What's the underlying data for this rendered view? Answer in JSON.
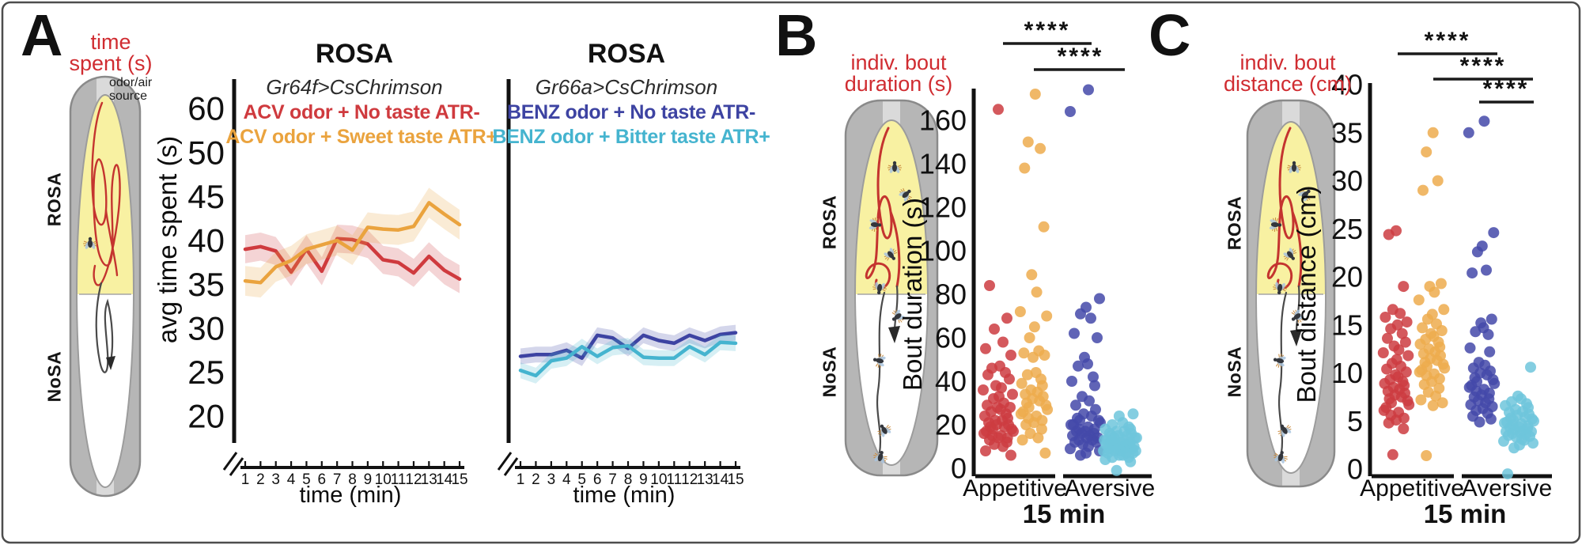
{
  "colors": {
    "caption_red": "#d02c31",
    "black": "#1a1a1a",
    "arena_gray": "#b6b6b6",
    "arena_border": "#8a8a8a",
    "arena_strip": "#dadada",
    "arena_yellow": "#f8f1a2",
    "path_red": "#c4342f",
    "path_dark": "#4a4a4a"
  },
  "panels": {
    "a": {
      "letter": "A",
      "caption_line1": "time",
      "caption_line2": "spent (s)",
      "odor_line1": "odor/air",
      "odor_line2": "source",
      "rosa": "ROSA",
      "nosa": "NoSA"
    },
    "b": {
      "letter": "B",
      "caption_line1": "indiv. bout",
      "caption_line2": "duration (s)",
      "rosa": "ROSA",
      "nosa": "NoSA"
    },
    "c": {
      "letter": "C",
      "caption_line1": "indiv. bout",
      "caption_line2": "distance (cm)",
      "rosa": "ROSA",
      "nosa": "NoSA"
    }
  },
  "chart_data": [
    {
      "type": "line",
      "title": "ROSA",
      "subtitle": "Gr64f>CsChrimson",
      "xlabel": "time (min)",
      "ylabel": "avg time spent (s)",
      "x": [
        "1",
        "2",
        "3",
        "4",
        "5",
        "6",
        "7",
        "8",
        "9",
        "10",
        "11",
        "12",
        "13",
        "14",
        "15"
      ],
      "yticks": [
        20,
        25,
        30,
        35,
        40,
        45,
        50,
        60
      ],
      "ylim": [
        20,
        60
      ],
      "series": [
        {
          "name": "ACV odor + No taste ATR-",
          "color": "#cf3a3e",
          "band": 1.6,
          "values": [
            39.0,
            39.3,
            38.8,
            36.4,
            39.0,
            36.5,
            40.2,
            40.1,
            39.6,
            37.8,
            37.5,
            36.3,
            38.2,
            36.6,
            35.6
          ]
        },
        {
          "name": "ACV odor + Sweet taste ATR+",
          "color": "#eaa33e",
          "band": 1.7,
          "values": [
            35.4,
            35.2,
            37.0,
            37.7,
            39.0,
            39.5,
            40.0,
            38.9,
            41.5,
            41.3,
            41.2,
            41.6,
            44.3,
            43.0,
            41.8
          ]
        }
      ]
    },
    {
      "type": "line",
      "title": "ROSA",
      "subtitle": "Gr66a>CsChrimson",
      "xlabel": "time (min)",
      "ylabel": "avg time spent (s)",
      "x": [
        "1",
        "2",
        "3",
        "4",
        "5",
        "6",
        "7",
        "8",
        "9",
        "10",
        "11",
        "12",
        "13",
        "14",
        "15"
      ],
      "yticks": [],
      "ylim": [
        20,
        60
      ],
      "series": [
        {
          "name": "BENZ odor + No taste ATR-",
          "color": "#3d43a2",
          "band": 0.9,
          "values": [
            26.8,
            27.0,
            27.0,
            27.5,
            26.6,
            29.2,
            28.9,
            27.7,
            29.2,
            28.6,
            28.3,
            29.2,
            28.6,
            29.3,
            29.5
          ]
        },
        {
          "name": "BENZ odor + Bitter taste ATR+",
          "color": "#45b4cf",
          "band": 0.9,
          "values": [
            25.2,
            24.6,
            26.3,
            26.6,
            27.9,
            26.8,
            27.8,
            28.0,
            26.7,
            26.6,
            26.6,
            27.9,
            27.0,
            28.4,
            28.3
          ]
        }
      ]
    },
    {
      "type": "jitter-scatter",
      "ylabel": "Bout duration (s)",
      "xlabel": "15 min",
      "yticks": [
        0,
        20,
        40,
        60,
        80,
        100,
        120,
        140,
        160
      ],
      "ylim": [
        0,
        175
      ],
      "sig": [
        {
          "label": "****"
        },
        {
          "label": "****"
        }
      ],
      "groups": [
        {
          "label": "Appetitive",
          "series": [
            {
              "color": "#cc3c41",
              "values": [
                165,
                84,
                69,
                64,
                58,
                55,
                52,
                47,
                46,
                44,
                43,
                41,
                38,
                37,
                36,
                34,
                33,
                32,
                30,
                29,
                28,
                28,
                27,
                26,
                25,
                24,
                23,
                22,
                22,
                21,
                20,
                20,
                19,
                19,
                18,
                18,
                17,
                17,
                16,
                15,
                15,
                14,
                14,
                13,
                12,
                11,
                10,
                8,
                6
              ]
            },
            {
              "color": "#edab4e",
              "values": [
                172,
                150,
                147,
                138,
                111,
                89,
                81,
                72,
                70,
                65,
                60,
                54,
                53,
                52,
                51,
                44,
                43,
                41,
                39,
                38,
                36,
                35,
                34,
                33,
                32,
                31,
                30,
                29,
                28,
                27,
                26,
                25,
                24,
                23,
                22,
                21,
                20,
                18,
                16,
                14,
                13,
                7
              ]
            }
          ]
        },
        {
          "label": "Aversive",
          "series": [
            {
              "color": "#4449a9",
              "values": [
                174,
                164,
                78,
                74,
                71,
                69,
                62,
                60,
                51,
                48,
                47,
                42,
                40,
                38,
                33,
                31,
                29,
                27,
                25,
                24,
                23,
                22,
                22,
                21,
                20,
                20,
                19,
                18,
                18,
                17,
                17,
                16,
                16,
                15,
                15,
                14,
                14,
                13,
                13,
                12,
                12,
                11,
                10,
                9,
                8,
                7,
                6
              ]
            },
            {
              "color": "#6ec6dc",
              "values": [
                25,
                24,
                21,
                20,
                19,
                18,
                18,
                17,
                17,
                16,
                16,
                15,
                15,
                15,
                14,
                14,
                14,
                13,
                13,
                13,
                12,
                12,
                12,
                12,
                11,
                11,
                11,
                11,
                10,
                10,
                10,
                10,
                9,
                9,
                9,
                9,
                8,
                8,
                8,
                8,
                7,
                7,
                7,
                6,
                6,
                5,
                5,
                4,
                3,
                -1
              ]
            }
          ]
        }
      ]
    },
    {
      "type": "jitter-scatter",
      "ylabel": "Bout distance (cm)",
      "xlabel": "15 min",
      "yticks": [
        0,
        5,
        10,
        15,
        20,
        25,
        30,
        35,
        40
      ],
      "ylim": [
        0,
        40
      ],
      "sig": [
        {
          "label": "****"
        },
        {
          "label": "****"
        },
        {
          "label": "****"
        }
      ],
      "groups": [
        {
          "label": "Appetitive",
          "series": [
            {
              "color": "#cc3c41",
              "values": [
                24.8,
                24.4,
                19,
                16.6,
                16.2,
                15.8,
                15.3,
                15,
                14.6,
                14.1,
                13.6,
                13.2,
                12.8,
                12.4,
                12.1,
                11.8,
                11.4,
                11,
                10.7,
                10.4,
                10.1,
                9.8,
                9.6,
                9.3,
                9.1,
                8.9,
                8.7,
                8.5,
                8.3,
                8.1,
                7.9,
                7.7,
                7.5,
                7.3,
                7.1,
                6.9,
                6.7,
                6.4,
                6.1,
                5.9,
                5.6,
                5.3,
                5.1,
                4.8,
                4.2,
                1.5
              ]
            },
            {
              "color": "#edab4e",
              "values": [
                35,
                33,
                30,
                29,
                19.3,
                19,
                18.4,
                17.6,
                16.6,
                16.1,
                15.6,
                15.1,
                14.7,
                14.4,
                14.1,
                13.8,
                13.5,
                13.2,
                13,
                12.7,
                12.5,
                12.2,
                12,
                11.8,
                11.5,
                11.3,
                11.1,
                10.9,
                10.7,
                10.5,
                10.3,
                10.1,
                9.9,
                9.7,
                9.4,
                9.1,
                8.8,
                8.4,
                8,
                7.6,
                7.2,
                6.9,
                6.6,
                1.4
              ]
            }
          ]
        },
        {
          "label": "Aversive",
          "series": [
            {
              "color": "#4449a9",
              "values": [
                36.2,
                35,
                24.6,
                23.2,
                22.6,
                20.7,
                20.4,
                15.6,
                15.2,
                14.7,
                14.3,
                14,
                12.6,
                12.2,
                11.1,
                10.8,
                10.5,
                10.2,
                10,
                9.8,
                9.5,
                9.3,
                9.1,
                8.9,
                8.7,
                8.5,
                8.3,
                8.1,
                7.9,
                7.7,
                7.5,
                7.3,
                7.1,
                6.9,
                6.7,
                6.5,
                6.3,
                6.1,
                5.8,
                5.5,
                5.2,
                4.9
              ]
            },
            {
              "color": "#6ec6dc",
              "values": [
                10.6,
                7.6,
                7.3,
                7,
                6.8,
                6.6,
                6.4,
                6.2,
                6,
                5.9,
                5.7,
                5.6,
                5.4,
                5.3,
                5.2,
                5.1,
                5,
                4.9,
                4.8,
                4.7,
                4.6,
                4.5,
                4.4,
                4.3,
                4.2,
                4.1,
                4,
                3.9,
                3.9,
                3.8,
                3.7,
                3.6,
                3.5,
                3.4,
                3.3,
                3.1,
                2.9,
                2.7,
                2.5,
                2.2,
                3.0,
                -0.5
              ]
            }
          ]
        }
      ]
    }
  ]
}
